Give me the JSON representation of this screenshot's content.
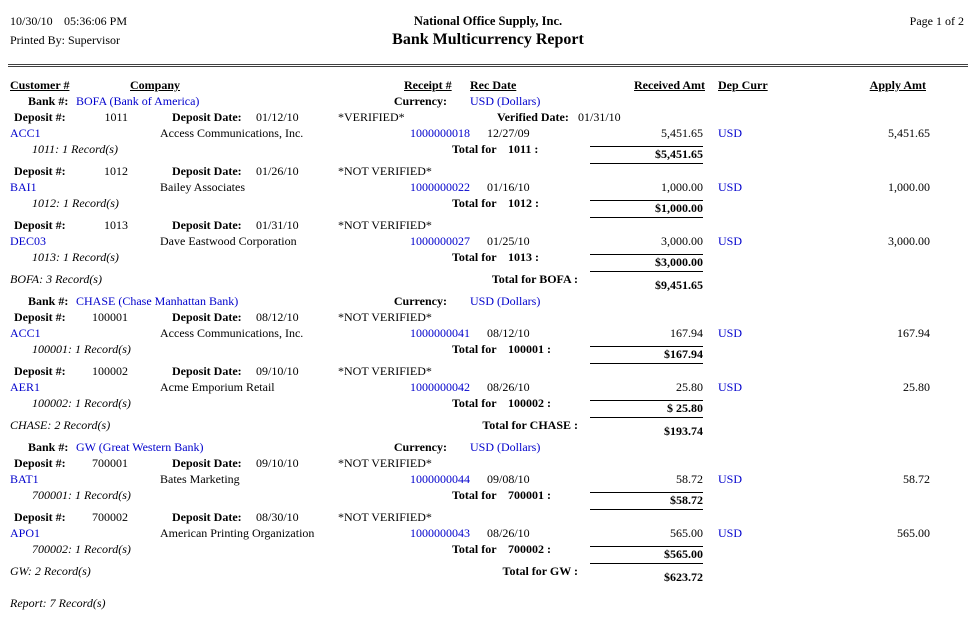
{
  "header": {
    "date": "10/30/10",
    "time": "05:36:06 PM",
    "printed_by": "Printed By: Supervisor",
    "company": "National Office Supply, Inc.",
    "title": "Bank Multicurrency Report",
    "page": "Page 1 of 2"
  },
  "columns": {
    "customer": "Customer #",
    "company": "Company",
    "receipt": "Receipt #",
    "rec_date": "Rec Date",
    "received_amt": "Received Amt",
    "dep_curr": "Dep Curr",
    "apply_amt": "Apply Amt"
  },
  "labels": {
    "bank": "Bank #:",
    "currency": "Currency:",
    "deposit": "Deposit #:",
    "deposit_date": "Deposit Date:",
    "total_for": "Total for"
  },
  "colors": {
    "link": "#0000cc"
  },
  "banks": [
    {
      "name": "BOFA (Bank of America)",
      "currency": "USD (Dollars)",
      "deposits": [
        {
          "number": "1011",
          "date": "01/12/10",
          "status": "*VERIFIED*",
          "verified_label": "Verified Date:",
          "verified_date": "01/31/10",
          "entry": {
            "customer": "ACC1",
            "company": "Access Communications, Inc.",
            "receipt": "1000000018",
            "rec_date": "12/27/09",
            "received": "5,451.65",
            "curr": "USD",
            "apply": "5,451.65"
          },
          "records": "1011: 1 Record(s)",
          "total_label": "1011 :",
          "total": "$5,451.65"
        },
        {
          "number": "1012",
          "date": "01/26/10",
          "status": "*NOT VERIFIED*",
          "entry": {
            "customer": "BAI1",
            "company": "Bailey Associates",
            "receipt": "1000000022",
            "rec_date": "01/16/10",
            "received": "1,000.00",
            "curr": "USD",
            "apply": "1,000.00"
          },
          "records": "1012: 1 Record(s)",
          "total_label": "1012 :",
          "total": "$1,000.00"
        },
        {
          "number": "1013",
          "date": "01/31/10",
          "status": "*NOT VERIFIED*",
          "entry": {
            "customer": "DEC03",
            "company": "Dave Eastwood Corporation",
            "receipt": "1000000027",
            "rec_date": "01/25/10",
            "received": "3,000.00",
            "curr": "USD",
            "apply": "3,000.00"
          },
          "records": "1013: 1 Record(s)",
          "total_label": "1013 :",
          "total": "$3,000.00"
        }
      ],
      "records": "BOFA: 3 Record(s)",
      "total_label": "Total for BOFA :",
      "total": "$9,451.65"
    },
    {
      "name": "CHASE (Chase Manhattan Bank)",
      "currency": "USD (Dollars)",
      "deposits": [
        {
          "number": "100001",
          "date": "08/12/10",
          "status": "*NOT VERIFIED*",
          "entry": {
            "customer": "ACC1",
            "company": "Access Communications, Inc.",
            "receipt": "1000000041",
            "rec_date": "08/12/10",
            "received": "167.94",
            "curr": "USD",
            "apply": "167.94"
          },
          "records": "100001: 1 Record(s)",
          "total_label": "100001 :",
          "total": "$167.94"
        },
        {
          "number": "100002",
          "date": "09/10/10",
          "status": "*NOT VERIFIED*",
          "entry": {
            "customer": "AER1",
            "company": "Acme Emporium Retail",
            "receipt": "1000000042",
            "rec_date": "08/26/10",
            "received": "25.80",
            "curr": "USD",
            "apply": "25.80"
          },
          "records": "100002: 1 Record(s)",
          "total_label": "100002 :",
          "total": "$ 25.80"
        }
      ],
      "records": "CHASE: 2 Record(s)",
      "total_label": "Total for CHASE :",
      "total": "$193.74"
    },
    {
      "name": "GW (Great Western Bank)",
      "currency": "USD (Dollars)",
      "deposits": [
        {
          "number": "700001",
          "date": "09/10/10",
          "status": "*NOT VERIFIED*",
          "entry": {
            "customer": "BAT1",
            "company": "Bates Marketing",
            "receipt": "1000000044",
            "rec_date": "09/08/10",
            "received": "58.72",
            "curr": "USD",
            "apply": "58.72"
          },
          "records": "700001: 1 Record(s)",
          "total_label": "700001 :",
          "total": "$58.72"
        },
        {
          "number": "700002",
          "date": "08/30/10",
          "status": "*NOT VERIFIED*",
          "entry": {
            "customer": "APO1",
            "company": "American Printing Organization",
            "receipt": "1000000043",
            "rec_date": "08/26/10",
            "received": "565.00",
            "curr": "USD",
            "apply": "565.00"
          },
          "records": "700002: 1 Record(s)",
          "total_label": "700002 :",
          "total": "$565.00"
        }
      ],
      "records": "GW: 2 Record(s)",
      "total_label": "Total for GW :",
      "total": "$623.72"
    }
  ],
  "report_footer": "Report: 7 Record(s)"
}
